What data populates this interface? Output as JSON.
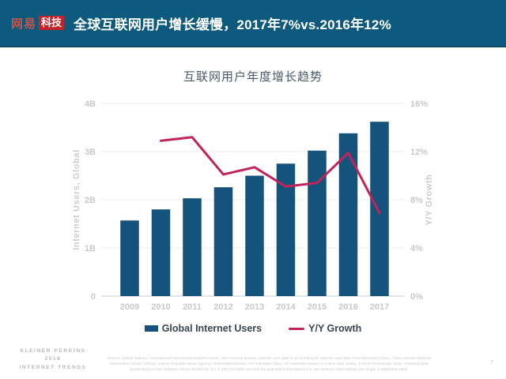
{
  "header": {
    "logo_netease": "网易",
    "logo_tech": "科技",
    "title": "全球互联网用户增长缓慢，2017年7%vs.2016年12%",
    "bg_color": "#0d5a7e"
  },
  "chart_data": {
    "type": "bar",
    "title": "互联网用户年度增长趋势",
    "categories": [
      "2009",
      "2010",
      "2011",
      "2012",
      "2013",
      "2014",
      "2015",
      "2016",
      "2017"
    ],
    "series": [
      {
        "name": "Global Internet Users",
        "type": "bar",
        "axis": "left",
        "unit": "B",
        "color": "#14537c",
        "values": [
          1.57,
          1.8,
          2.03,
          2.26,
          2.5,
          2.75,
          3.02,
          3.38,
          3.62
        ]
      },
      {
        "name": "Y/Y Growth",
        "type": "line",
        "axis": "right",
        "unit": "%",
        "color": "#c1235a",
        "values": [
          null,
          12.9,
          13.2,
          10.1,
          10.7,
          9.1,
          9.4,
          11.9,
          6.9
        ]
      }
    ],
    "left_axis": {
      "label": "Internet Users, Global",
      "ticks": [
        "0",
        "1B",
        "2B",
        "3B",
        "4B"
      ],
      "min": 0,
      "max": 4
    },
    "right_axis": {
      "label": "Y/Y Growth",
      "ticks": [
        "0%",
        "4%",
        "8%",
        "12%",
        "16%"
      ],
      "min": 0,
      "max": 16
    },
    "legend_position": "bottom",
    "grid": true
  },
  "footer": {
    "brand_line1": "KLEINER PERKINS",
    "brand_line2": "2018",
    "brand_line3": "INTERNET TRENDS",
    "source": "Source: United Nations / International Telecommunications Union, USA Census Bureau. Internet user data is as of mid-year. Internet user data: Pew Research (USA), China Internet Network Information Center (China), Islamic Republic News Agency / InternetWorldStats / KP estimates (Iran), KP estimates based on IAMAI data (India), & APJII (Indonesia). Note: Historical data (particularly in Sub-Saharan Africa) revised by ITU in 2017 to better account for dual-SIM subscriptions (i.e. two Internet subscriptions per single smartphone user).",
    "page_number": "7"
  }
}
